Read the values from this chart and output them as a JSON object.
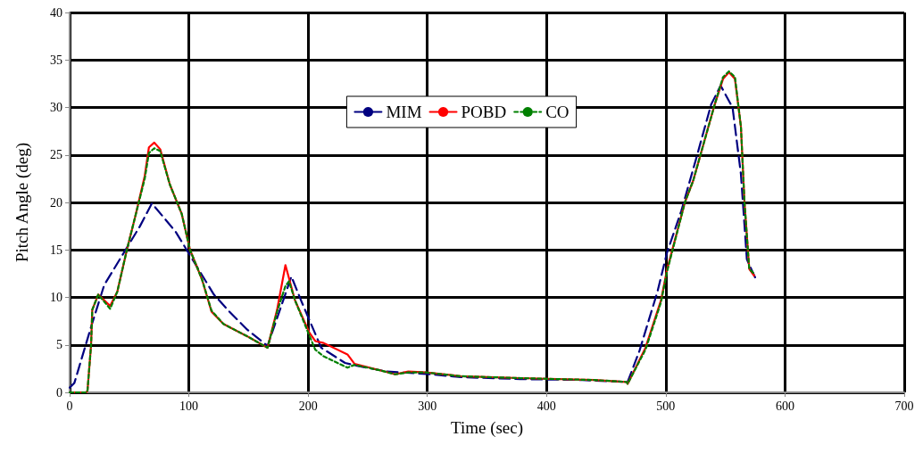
{
  "chart_data": {
    "type": "line",
    "xlabel": "Time (sec)",
    "ylabel": "Pitch Angle (deg)",
    "xlim": [
      0,
      700
    ],
    "xticks": [
      0,
      100,
      200,
      300,
      400,
      500,
      600,
      700
    ],
    "ylim": [
      0,
      40
    ],
    "yticks": [
      0,
      5,
      10,
      15,
      20,
      25,
      30,
      35,
      40
    ],
    "grid": true,
    "legend": "top",
    "marker": "none",
    "series": [
      {
        "name": "MIM",
        "color": "#000080",
        "line_style": "dashed",
        "x": [
          0,
          4,
          18,
          29,
          44,
          59,
          69,
          89,
          104,
          121,
          134,
          149,
          166,
          186,
          194,
          211,
          231,
          241,
          266,
          303,
          328,
          378,
          430,
          465,
          468,
          478,
          493,
          501,
          513,
          525,
          538,
          546,
          556,
          563,
          568,
          576
        ],
        "values": [
          0.5,
          1,
          6.9,
          11.3,
          14.4,
          17.5,
          19.9,
          16.9,
          13.8,
          10.3,
          8.5,
          6.6,
          4.9,
          12.2,
          9.7,
          4.7,
          3.1,
          2.8,
          2.2,
          1.9,
          1.6,
          1.4,
          1.3,
          1.1,
          1.1,
          4.4,
          10.6,
          14.7,
          19.1,
          24.4,
          30.3,
          32.3,
          30,
          23,
          14,
          11.8
        ]
      },
      {
        "name": "POBD",
        "color": "#ff0000",
        "line_style": "solid",
        "x": [
          0,
          14,
          15,
          18,
          19,
          24,
          34,
          40,
          48,
          55,
          63,
          66.5,
          71,
          76,
          84,
          94,
          101,
          111,
          119,
          129,
          149,
          166,
          174,
          181,
          189,
          201,
          206,
          213,
          233,
          239,
          261,
          273,
          284,
          299,
          328,
          378,
          440,
          467,
          468,
          483,
          496,
          501,
          516,
          523,
          541,
          548,
          553,
          558,
          563,
          566,
          570,
          574
        ],
        "values": [
          0,
          0,
          0.2,
          5,
          8.7,
          10.3,
          9.1,
          10.6,
          15,
          18.5,
          22.8,
          25.8,
          26.3,
          25.6,
          21.9,
          18.8,
          15,
          11.9,
          8.5,
          7.2,
          5.9,
          4.7,
          8.7,
          13.4,
          9.7,
          6.3,
          5.4,
          5.2,
          4,
          3,
          2.3,
          1.9,
          2.2,
          2.1,
          1.7,
          1.5,
          1.3,
          1.1,
          0.9,
          4.7,
          9.7,
          12.9,
          20,
          22.3,
          30.3,
          33,
          33.7,
          33,
          28,
          20,
          13,
          12.3
        ]
      },
      {
        "name": "CO",
        "color": "#008000",
        "line_style": "dotted",
        "x": [
          0,
          14,
          15,
          18,
          19,
          24,
          34,
          40,
          48,
          55,
          63,
          66.5,
          71,
          76,
          84,
          94,
          101,
          111,
          119,
          129,
          149,
          166,
          174,
          181,
          184,
          189,
          201,
          206,
          213,
          233,
          239,
          261,
          273,
          284,
          299,
          328,
          378,
          440,
          467,
          468,
          483,
          496,
          501,
          516,
          523,
          541,
          548,
          553,
          558,
          563,
          566,
          570,
          574
        ],
        "values": [
          0,
          0,
          0.2,
          5,
          8.7,
          10.3,
          8.8,
          10.6,
          15,
          18.5,
          22.5,
          25.2,
          25.7,
          25.4,
          21.9,
          18.8,
          15,
          11.9,
          8.6,
          7.2,
          5.9,
          4.7,
          8.5,
          11.2,
          11.7,
          9.7,
          6,
          4.5,
          3.8,
          2.6,
          2.9,
          2.3,
          1.9,
          2.1,
          2.1,
          1.7,
          1.5,
          1.3,
          1.1,
          0.9,
          4.5,
          9.5,
          12.7,
          20,
          22.3,
          30.3,
          33.2,
          33.8,
          33.2,
          28,
          20,
          13,
          12.5
        ]
      }
    ]
  }
}
